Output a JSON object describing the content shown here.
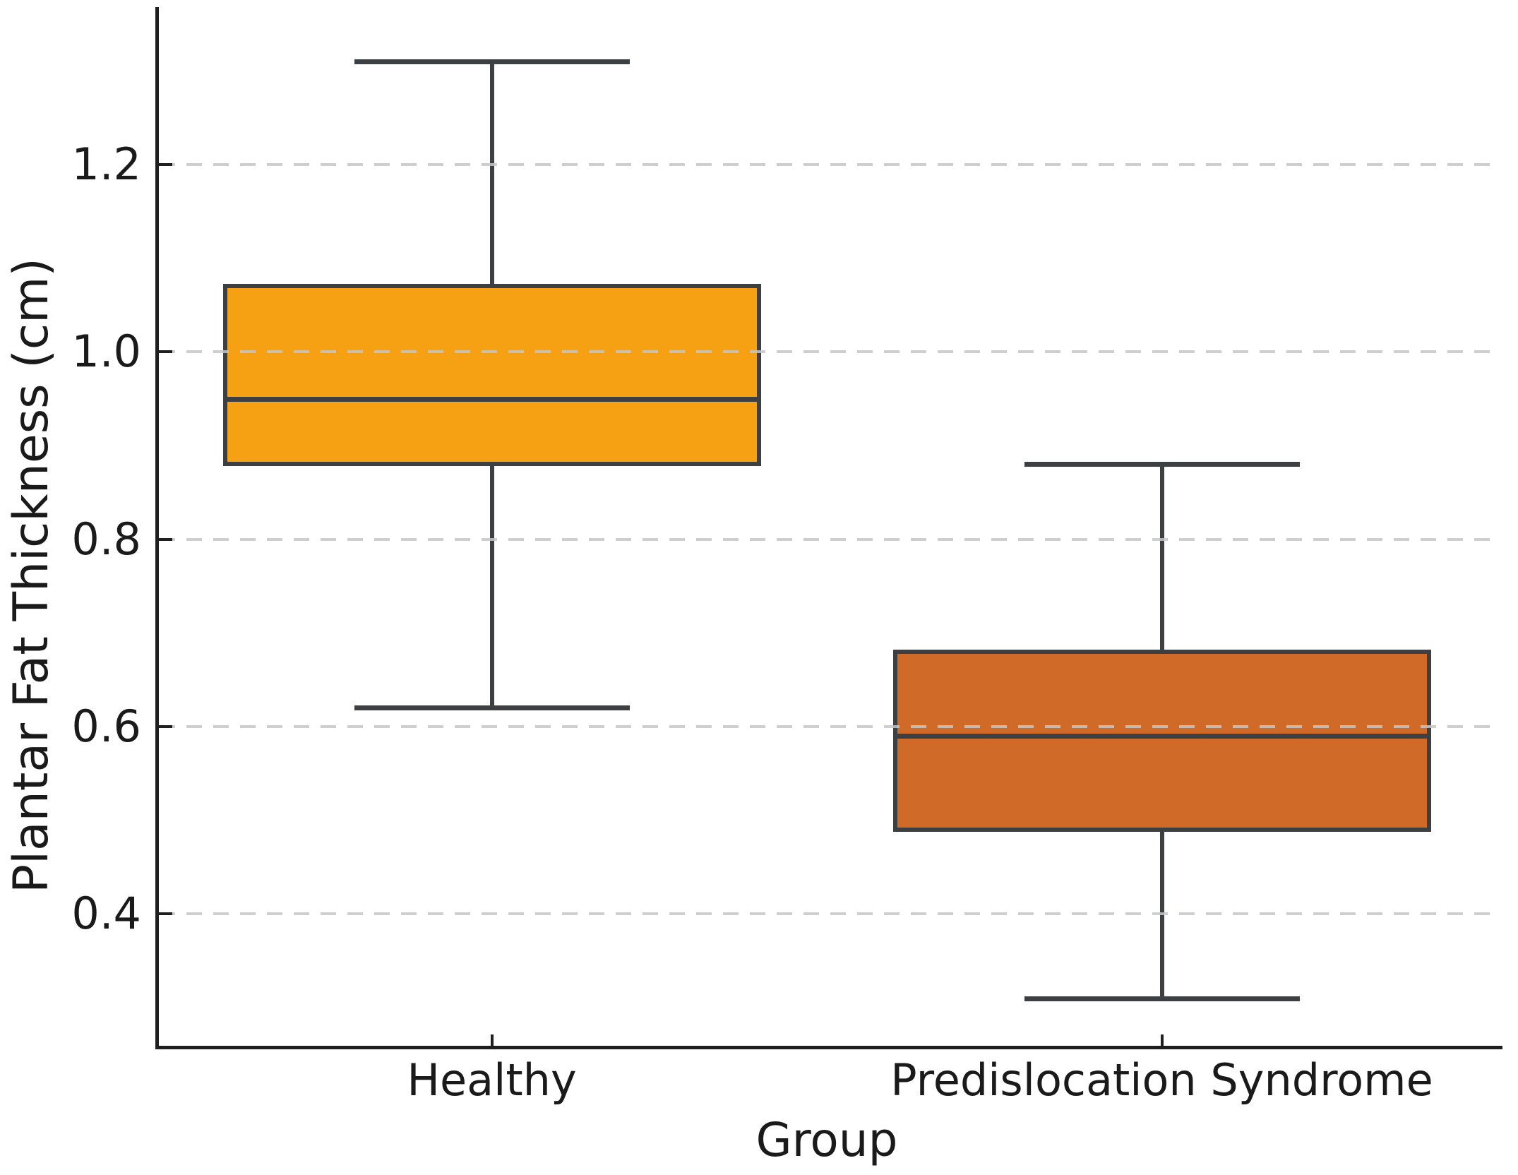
{
  "chart_data": {
    "type": "box",
    "title": "",
    "xlabel": "Group",
    "ylabel": "Plantar Fat Thickness (cm)",
    "categories": [
      "Healthy",
      "Predislocation Syndrome"
    ],
    "series": [
      {
        "name": "Healthy",
        "whisker_low": 0.62,
        "q1": 0.88,
        "median": 0.95,
        "q3": 1.07,
        "whisker_high": 1.31,
        "fill_color": "#F6A013"
      },
      {
        "name": "Predislocation Syndrome",
        "whisker_low": 0.31,
        "q1": 0.49,
        "median": 0.59,
        "q3": 0.68,
        "whisker_high": 0.88,
        "fill_color": "#D06A28"
      }
    ],
    "y_ticks": [
      1.2,
      1.0,
      0.8,
      0.6,
      0.4
    ],
    "y_tick_labels": [
      "1.2",
      "1.0",
      "0.8",
      "0.6",
      "0.4"
    ],
    "ylim": [
      0.257,
      1.368
    ],
    "grid": "horizontal-dashed",
    "legend": "none",
    "edge_color": "#3C4043",
    "grid_color": "#C6C6C6",
    "axis_color": "#1F1F1F",
    "text_color": "#1A1A1A"
  }
}
